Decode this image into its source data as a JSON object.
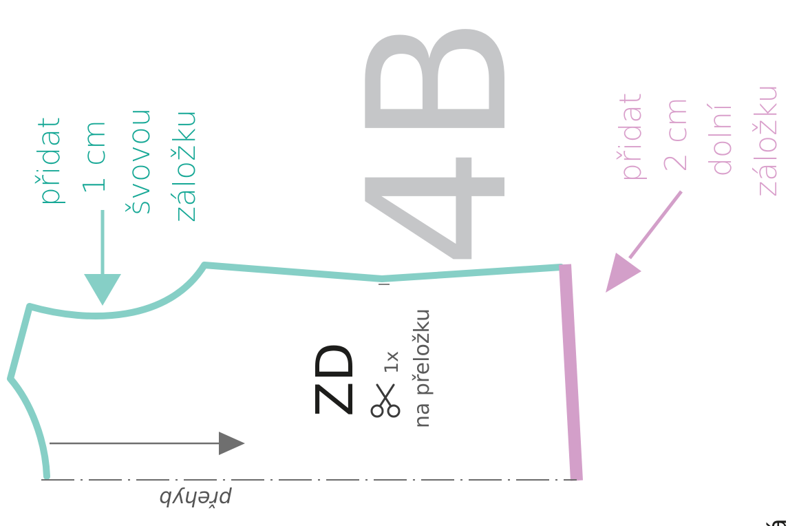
{
  "size_label": "4B",
  "piece_code": "ZD",
  "cut_count": "1x",
  "cut_note": "na přeložku",
  "fold_label": "přehyb",
  "seam_note": {
    "lines": [
      "přidat",
      "1 cm",
      "švovou",
      "záložku"
    ],
    "color": "#17a896"
  },
  "hem_note": {
    "lines": [
      "přidat",
      "2 cm",
      "dolní",
      "záložku"
    ],
    "color": "#d99fcb"
  },
  "corner_glyph": "á",
  "icons": {
    "cut": "scissors-icon",
    "grain": "grainline-arrow"
  },
  "colors": {
    "outline": "#86cfc6",
    "hem": "#d39fc9",
    "size": "#c5c6c8",
    "text": "#1d1d1b",
    "muted": "#5a5a5a",
    "arrow": "#6f6f6f"
  }
}
